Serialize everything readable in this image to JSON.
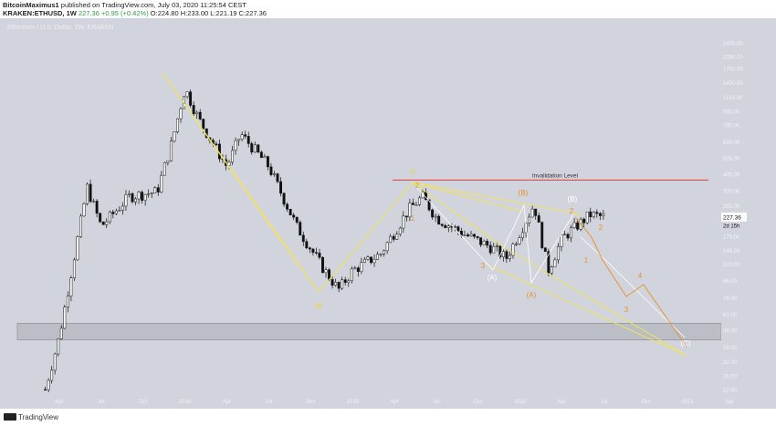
{
  "header": {
    "author": "BitcoinMaximus1",
    "published": "published on TradingView.com, July 03, 2020 11:25:54 CEST",
    "symbol": "KRAKEN:ETHUSD, 1W",
    "last": "227.36",
    "change": "+0.95 (+0.42%)",
    "ohlc": "O:224.80 H:233.00 L:221.19 C:227.36"
  },
  "instrument_title": "Ethereum / U.S. Dollar, 1W, KRAKEN",
  "footer": {
    "logo": "TradingView"
  },
  "colors": {
    "background": "#d1d4dc",
    "candles": "#111111",
    "yellow_wave": "#f0e45a",
    "orange_wave": "#e8902a",
    "white_wave": "#ffffff",
    "invalidation": "#e23b3b",
    "support_box": "#a9acb4"
  },
  "chart_data": {
    "type": "candlestick",
    "symbol": "ETHUSD",
    "exchange": "KRAKEN",
    "interval": "1W",
    "scale": "log",
    "y_axis_ticks": [
      "2400.00",
      "2000.00",
      "1700.00",
      "1400.00",
      "1150.00",
      "950.00",
      "790.00",
      "630.00",
      "505.00",
      "405.00",
      "325.00",
      "265.00",
      "215.00",
      "175.00",
      "145.00",
      "120.00",
      "96.00",
      "76.00",
      "61.00",
      "49.00",
      "39.00",
      "32.00",
      "26.50",
      "22.00"
    ],
    "x_axis_ticks": [
      "Apr",
      "Jul",
      "Oct",
      "2018",
      "Apr",
      "Jul",
      "Oct",
      "2019",
      "Apr",
      "Jul",
      "Oct",
      "2020",
      "Apr",
      "Jul",
      "Oct",
      "2021",
      "Apr"
    ],
    "last_price": "227.36",
    "countdown": "2d 15h",
    "approx_price_path": [
      [
        "2017-03",
        22
      ],
      [
        "2017-04",
        45
      ],
      [
        "2017-06",
        340
      ],
      [
        "2017-07",
        200
      ],
      [
        "2017-09",
        300
      ],
      [
        "2017-11",
        320
      ],
      [
        "2017-12",
        600
      ],
      [
        "2018-01",
        1300
      ],
      [
        "2018-02",
        850
      ],
      [
        "2018-04",
        450
      ],
      [
        "2018-05",
        700
      ],
      [
        "2018-07",
        450
      ],
      [
        "2018-09",
        200
      ],
      [
        "2018-11",
        110
      ],
      [
        "2018-12",
        85
      ],
      [
        "2019-01",
        110
      ],
      [
        "2019-03",
        138
      ],
      [
        "2019-05",
        250
      ],
      [
        "2019-06",
        300
      ],
      [
        "2019-07",
        225
      ],
      [
        "2019-09",
        180
      ],
      [
        "2019-11",
        150
      ],
      [
        "2019-12",
        130
      ],
      [
        "2020-02",
        270
      ],
      [
        "2020-03",
        110
      ],
      [
        "2020-04",
        170
      ],
      [
        "2020-06",
        235
      ],
      [
        "2020-07",
        227
      ]
    ],
    "annotations": [
      {
        "label": "Invalidation Level",
        "price": 375
      },
      {
        "label": "W"
      },
      {
        "label": "X"
      },
      {
        "label": "1"
      },
      {
        "label": "2"
      },
      {
        "label": "3"
      },
      {
        "label": "(A)"
      },
      {
        "label": "(B)"
      },
      {
        "label": "(A)"
      },
      {
        "label": "(B)"
      },
      {
        "label": "2"
      },
      {
        "label": "1"
      },
      {
        "label": "4"
      },
      {
        "label": "3"
      },
      {
        "label": "(C)"
      }
    ],
    "support_zone": [
      43,
      54
    ]
  }
}
